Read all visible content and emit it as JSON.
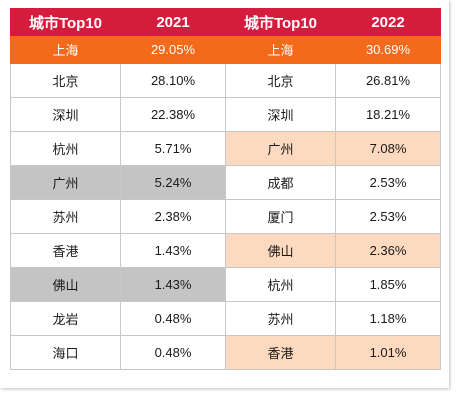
{
  "headers": [
    "城市Top10",
    "2021",
    "城市Top10",
    "2022"
  ],
  "rows": [
    {
      "city_2021": "上海",
      "share_2021": "29.05%",
      "city_2022": "上海",
      "share_2022": "30.69%"
    },
    {
      "city_2021": "北京",
      "share_2021": "28.10%",
      "city_2022": "北京",
      "share_2022": "26.81%"
    },
    {
      "city_2021": "深圳",
      "share_2021": "22.38%",
      "city_2022": "深圳",
      "share_2022": "18.21%"
    },
    {
      "city_2021": "杭州",
      "share_2021": "5.71%",
      "city_2022": "广州",
      "share_2022": "7.08%"
    },
    {
      "city_2021": "广州",
      "share_2021": "5.24%",
      "city_2022": "成都",
      "share_2022": "2.53%"
    },
    {
      "city_2021": "苏州",
      "share_2021": "2.38%",
      "city_2022": "厦门",
      "share_2022": "2.53%"
    },
    {
      "city_2021": "香港",
      "share_2021": "1.43%",
      "city_2022": "佛山",
      "share_2022": "2.36%"
    },
    {
      "city_2021": "佛山",
      "share_2021": "1.43%",
      "city_2022": "杭州",
      "share_2022": "1.85%"
    },
    {
      "city_2021": "龙岩",
      "share_2021": "0.48%",
      "city_2022": "苏州",
      "share_2022": "1.18%"
    },
    {
      "city_2021": "海口",
      "share_2021": "0.48%",
      "city_2022": "香港",
      "share_2022": "1.01%"
    }
  ],
  "colors": {
    "header": "#d41c3c",
    "top_row": "#f36a1a",
    "gray_highlight": "#c4c4c4",
    "peach_highlight": "#fcd9bf"
  }
}
